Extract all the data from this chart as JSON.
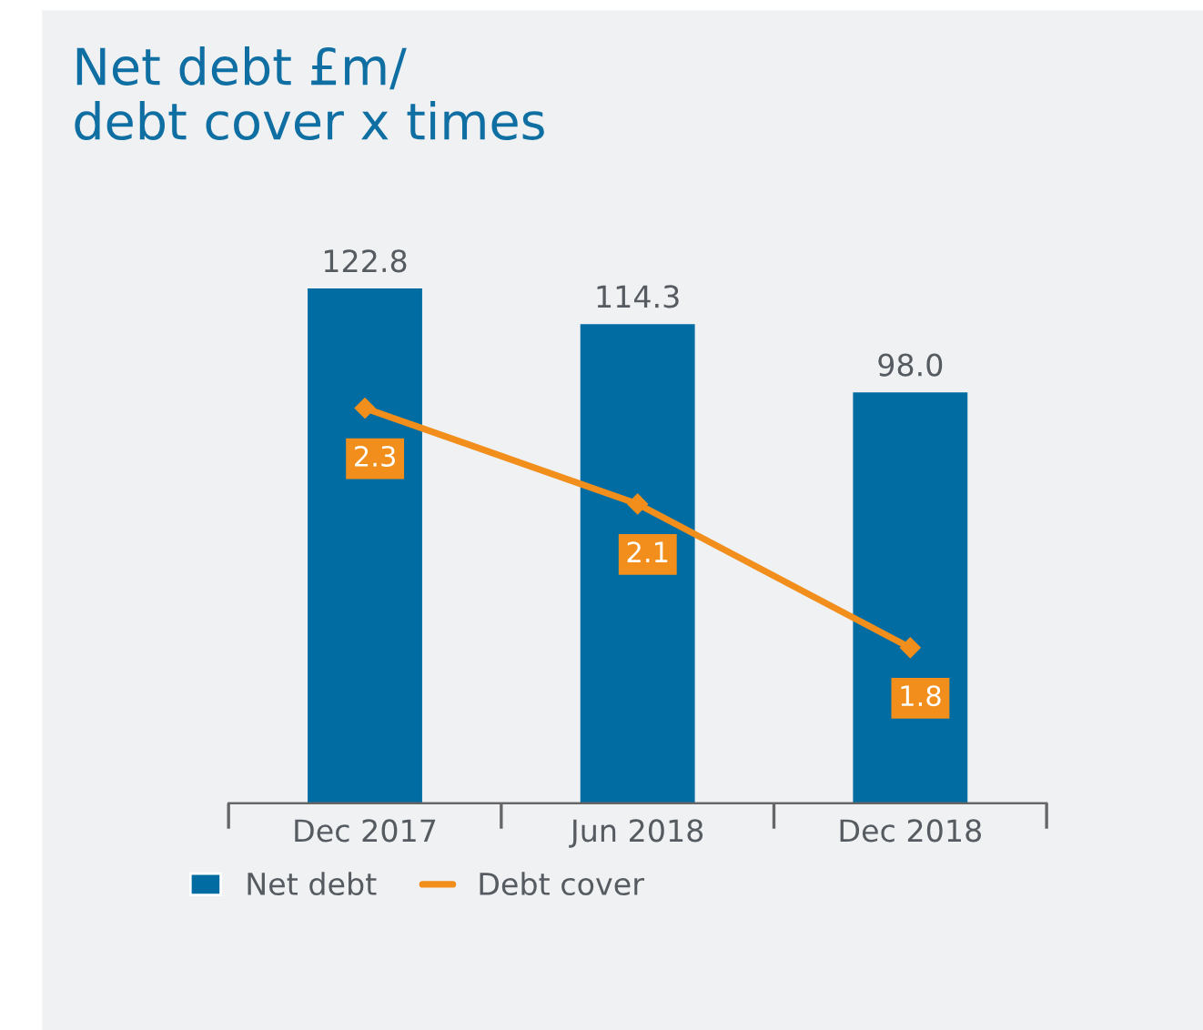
{
  "chart_data": {
    "type": "bar",
    "title": "Net debt £m/\ndebt cover x times",
    "categories": [
      "Dec 2017",
      "Jun 2018",
      "Dec 2018"
    ],
    "series": [
      {
        "name": "Net debt",
        "color": "#006ca1",
        "values": [
          122.8,
          114.3,
          98.0
        ],
        "value_labels": [
          "122.8",
          "114.3",
          "98.0"
        ]
      },
      {
        "name": "Debt cover",
        "type": "line",
        "axis": "y2",
        "color": "#f18e1c",
        "marker": "diamond",
        "values": [
          2.3,
          2.1,
          1.8
        ]
      }
    ],
    "data_labels": true,
    "tick_labels": "x",
    "grid": false,
    "legend": "bottom"
  }
}
